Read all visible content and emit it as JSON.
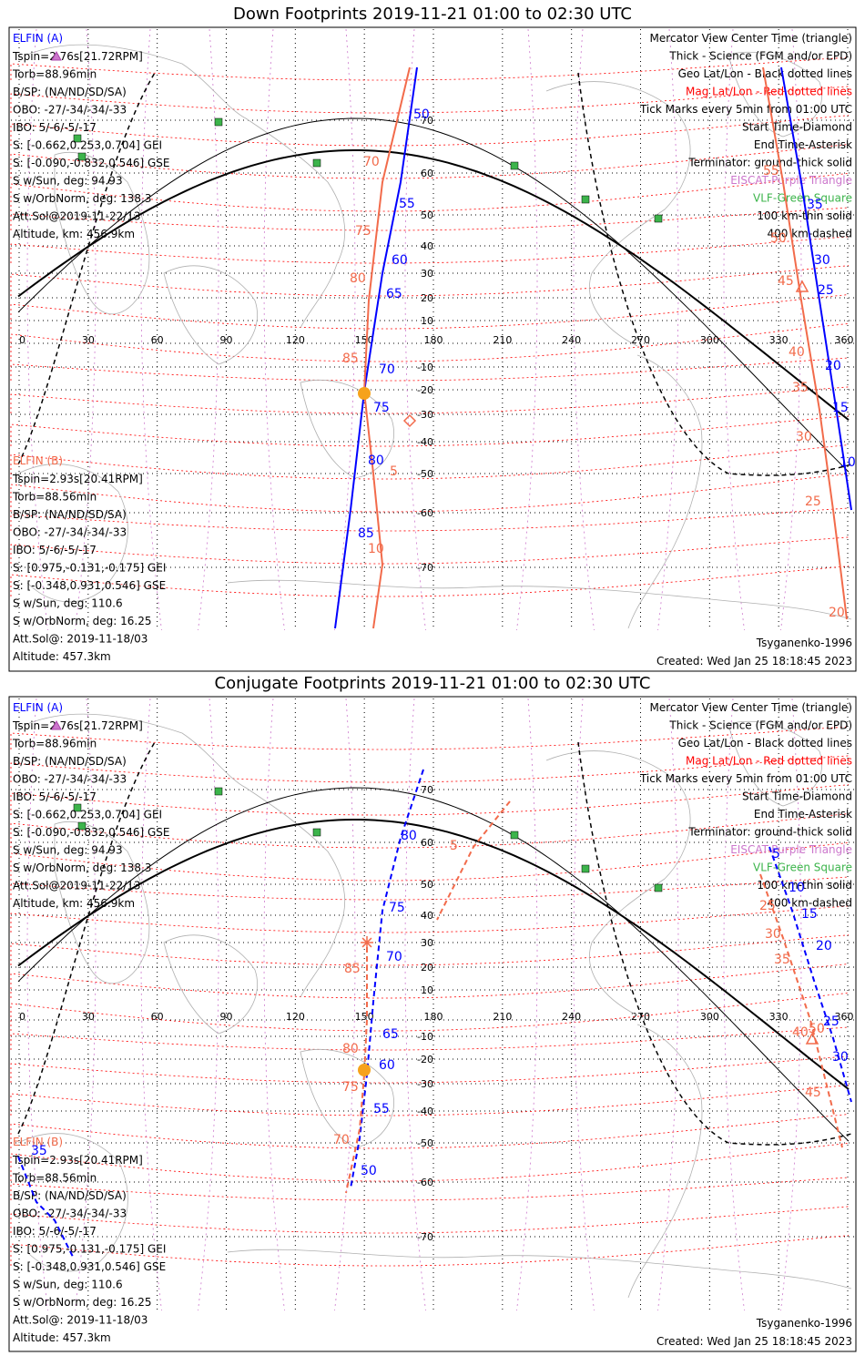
{
  "colors": {
    "red": "#ff0000",
    "blue": "#0000ff",
    "orange": "#f26b4b",
    "green": "#3cb44b",
    "violet": "#cc77cc",
    "land": "#b0b0b0",
    "sun": "#f6a21b"
  },
  "icons": {
    "start": "diamond-icon",
    "end": "asterisk-icon",
    "center": "triangle-icon",
    "vlf": "green-square-icon",
    "sun": "sun-icon"
  },
  "axes": {
    "lon_ticks": [
      "0",
      "30",
      "60",
      "90",
      "120",
      "150",
      "180",
      "210",
      "240",
      "270",
      "300",
      "330",
      "360"
    ],
    "lat_ticks": [
      "70",
      "60",
      "50",
      "40",
      "30",
      "20",
      "10",
      "-10",
      "-20",
      "-30",
      "-40",
      "-50",
      "-60",
      "-70"
    ]
  },
  "panels": [
    {
      "title": "Down Footprints 2019-11-21 01:00 to 02:30 UTC",
      "elfin_a": {
        "name": "ELFIN (A)",
        "lines": [
          "Tspin=2.76s[21.72RPM]",
          "Torb=88.96min",
          "B/SP: (NA/ND/SD/SA)",
          "OBO: -27/-34/-34/-33",
          "IBO: 5/-6/-5/-17",
          "S: [-0.662,0.253,0.704] GEI",
          "S: [-0.090,-0.832,0.546] GSE",
          "S w/Sun, deg: 94.93",
          "S w/OrbNorm, deg: 138.3",
          "Att.Sol@2019-11-22/13",
          "Altitude, km: 456.9km"
        ]
      },
      "elfin_b": {
        "name": "ELFIN (B)",
        "lines": [
          "Tspin=2.93s[20.41RPM]",
          "Torb=88.56min",
          "B/SP: (NA/ND/SD/SA)",
          "OBO: -27/-34/-34/-33",
          "IBO: 5/-6/-5/-17",
          "S: [0.975,-0.131,-0.175] GEI",
          "S: [-0.348,0.931,0.546] GSE",
          "S w/Sun, deg: 110.6",
          "S w/OrbNorm, deg: 16.25",
          "Att.Sol@: 2019-11-18/03",
          "Altitude: 457.3km"
        ]
      },
      "legend": [
        {
          "text": "Mercator View Center Time (triangle)",
          "color": "#000000"
        },
        {
          "text": "Thick - Science (FGM and/or EPD)",
          "color": "#000000"
        },
        {
          "text": "Geo Lat/Lon - Black dotted lines",
          "color": "#000000"
        },
        {
          "text": "Mag Lat/Lon - Red dotted lines",
          "color": "#ff0000"
        },
        {
          "text": "Tick Marks every 5min from 01:00 UTC",
          "color": "#000000"
        },
        {
          "text": "Start Time-Diamond",
          "color": "#000000"
        },
        {
          "text": "End Time-Asterisk",
          "color": "#000000"
        },
        {
          "text": "Terminator: ground-thick solid",
          "color": "#000000"
        },
        {
          "text": "EISCAT-Purple Triangle",
          "color": "#cc77cc"
        },
        {
          "text": "VLF-Green Square",
          "color": "#3cb44b"
        },
        {
          "text": "100 km-thin solid",
          "color": "#000000"
        },
        {
          "text": "400 km-dashed",
          "color": "#000000"
        }
      ],
      "model": "Tsyganenko-1996",
      "created": "Created: Wed Jan 25 18:18:45 2023",
      "track_a_labels": [
        "50",
        "55",
        "60",
        "65",
        "70",
        "75",
        "80",
        "85"
      ],
      "track_b_labels_top": [
        "70",
        "75",
        "80",
        "85"
      ],
      "track_b_labels_bottom": [
        "5",
        "10"
      ],
      "right_a_labels": [
        "35",
        "30",
        "25",
        "20",
        "15",
        "10"
      ],
      "right_b_labels": [
        "55",
        "50",
        "45",
        "40",
        "35",
        "30",
        "25",
        "20"
      ]
    },
    {
      "title": "Conjugate Footprints 2019-11-21 01:00 to 02:30 UTC",
      "elfin_a": {
        "name": "ELFIN (A)",
        "lines": [
          "Tspin=2.76s[21.72RPM]",
          "Torb=88.96min",
          "B/SP: (NA/ND/SD/SA)",
          "OBO: -27/-34/-34/-33",
          "IBO: 5/-6/-5/-17",
          "S: [-0.662,0.253,0.704] GEI",
          "S: [-0.090,-0.832,0.546] GSE",
          "S w/Sun, deg: 94.93",
          "S w/OrbNorm, deg: 138.3",
          "Att.Sol@2019-11-22/13",
          "Altitude, km: 456.9km"
        ]
      },
      "elfin_b": {
        "name": "ELFIN (B)",
        "lines": [
          "Tspin=2.93s[20.41RPM]",
          "Torb=88.56min",
          "B/SP: (NA/ND/SD/SA)",
          "OBO: -27/-34/-34/-33",
          "IBO: 5/-6/-5/-17",
          "S: [0.975,-0.131,-0.175] GEI",
          "S: [-0.348,0.931,0.546] GSE",
          "S w/Sun, deg: 110.6",
          "S w/OrbNorm, deg: 16.25",
          "Att.Sol@: 2019-11-18/03",
          "Altitude: 457.3km"
        ]
      },
      "legend": [
        {
          "text": "Mercator View Center Time (triangle)",
          "color": "#000000"
        },
        {
          "text": "Thick - Science (FGM and/or EPD)",
          "color": "#000000"
        },
        {
          "text": "Geo Lat/Lon - Black dotted lines",
          "color": "#000000"
        },
        {
          "text": "Mag Lat/Lon - Red dotted lines",
          "color": "#ff0000"
        },
        {
          "text": "Tick Marks every 5min from 01:00 UTC",
          "color": "#000000"
        },
        {
          "text": "Start Time-Diamond",
          "color": "#000000"
        },
        {
          "text": "End Time-Asterisk",
          "color": "#000000"
        },
        {
          "text": "Terminator: ground-thick solid",
          "color": "#000000"
        },
        {
          "text": "EISCAT-Purple Triangle",
          "color": "#cc77cc"
        },
        {
          "text": "VLF-Green Square",
          "color": "#3cb44b"
        },
        {
          "text": "100 km-thin solid",
          "color": "#000000"
        },
        {
          "text": "400 km-dashed",
          "color": "#000000"
        }
      ],
      "model": "Tsyganenko-1996",
      "created": "Created: Wed Jan 25 18:18:45 2023",
      "track_a_labels": [
        "80",
        "75",
        "70",
        "65",
        "60",
        "55",
        "50"
      ],
      "track_b_labels": [
        "5",
        "85",
        "80",
        "75",
        "70"
      ],
      "right_a_labels": [
        "5",
        "10",
        "15",
        "20",
        "25",
        "30"
      ],
      "right_b_labels": [
        "25",
        "30",
        "35",
        "40",
        "45",
        "50"
      ],
      "left_label": "35"
    }
  ]
}
